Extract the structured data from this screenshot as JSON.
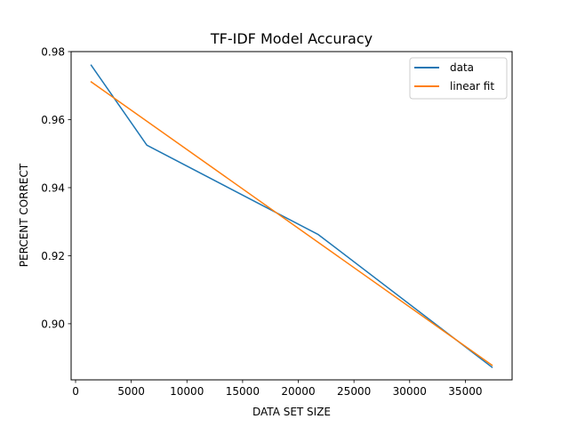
{
  "chart_data": {
    "type": "line",
    "title": "TF-IDF Model Accuracy",
    "xlabel": "DATA SET SIZE",
    "ylabel": "PERCENT CORRECT",
    "xlim": [
      -400,
      39200
    ],
    "ylim": [
      0.8835,
      0.98
    ],
    "xticks": [
      0,
      5000,
      10000,
      15000,
      20000,
      25000,
      30000,
      35000
    ],
    "yticks": [
      0.9,
      0.92,
      0.94,
      0.96,
      0.98
    ],
    "xtick_labels": [
      "0",
      "5000",
      "10000",
      "15000",
      "20000",
      "25000",
      "30000",
      "35000"
    ],
    "ytick_labels": [
      "0.90",
      "0.92",
      "0.94",
      "0.96",
      "0.98"
    ],
    "legend_position": "upper right",
    "grid": false,
    "series": [
      {
        "name": "data",
        "color": "#1f77b4",
        "x": [
          1400,
          6400,
          21800,
          37400
        ],
        "y": [
          0.976,
          0.9525,
          0.9262,
          0.8872
        ]
      },
      {
        "name": "linear fit",
        "color": "#ff7f0e",
        "x": [
          1400,
          37400
        ],
        "y": [
          0.9711,
          0.8878
        ]
      }
    ]
  }
}
